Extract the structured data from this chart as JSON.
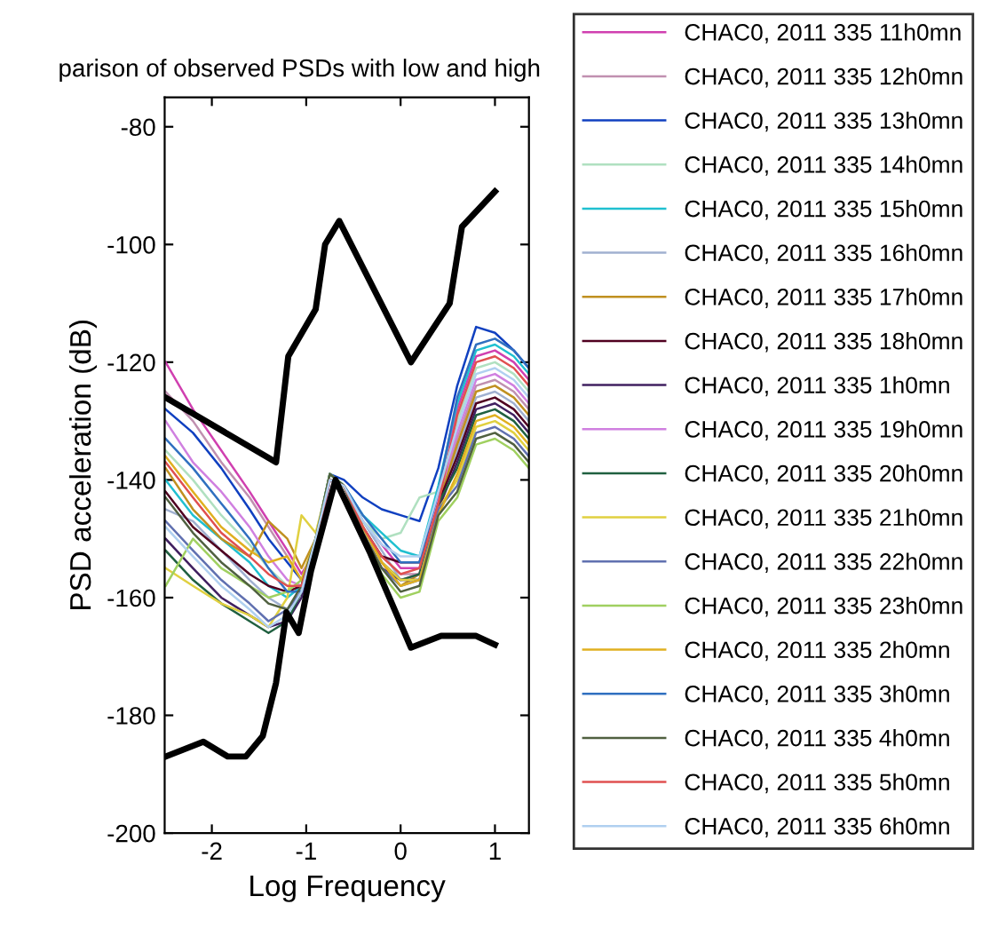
{
  "chart_data": {
    "type": "line",
    "title": "parison of observed PSDs with low and high",
    "xlabel": "Log Frequency",
    "ylabel": "PSD acceleration (dB)",
    "xlim": [
      -2.5,
      1.36
    ],
    "ylim": [
      -200,
      -75
    ],
    "xticks": [
      -2,
      -1,
      0,
      1
    ],
    "yticks": [
      -200,
      -180,
      -160,
      -140,
      -120,
      -100,
      -80
    ],
    "grid": false,
    "legend": "right",
    "marker": "none",
    "line_style": "solid",
    "x": [
      -2.49,
      -2.2,
      -1.9,
      -1.6,
      -1.4,
      -1.2,
      -1.05,
      -0.9,
      -0.75,
      -0.6,
      -0.4,
      -0.2,
      0,
      0.2,
      0.4,
      0.6,
      0.8,
      1.0,
      1.2,
      1.36
    ],
    "series": [
      {
        "name": "CHAC0, 2011 335 11h0mn",
        "color": "#d040b0",
        "values": [
          -120,
          -128,
          -135,
          -142,
          -147,
          -152,
          -156,
          -152,
          -140,
          -141,
          -147,
          -151,
          -155,
          -155,
          -143,
          -128,
          -119,
          -118,
          -120,
          -123
        ]
      },
      {
        "name": "CHAC0, 2011 335 12h0mn",
        "color": "#c090b0",
        "values": [
          -125,
          -130,
          -137,
          -143,
          -148,
          -153,
          -157,
          -153,
          -140,
          -141,
          -148,
          -153,
          -156,
          -156,
          -144,
          -133,
          -124,
          -123,
          -125,
          -128
        ]
      },
      {
        "name": "CHAC0, 2011 335 13h0mn",
        "color": "#1040c0",
        "values": [
          -128,
          -132,
          -138,
          -145,
          -150,
          -154,
          -157,
          -152,
          -139,
          -140,
          -143,
          -145,
          -146,
          -147,
          -138,
          -124,
          -114,
          -115,
          -118,
          -121
        ]
      },
      {
        "name": "CHAC0, 2011 335 14h0mn",
        "color": "#b0e0c0",
        "values": [
          -135,
          -140,
          -146,
          -151,
          -155,
          -158,
          -159,
          -151,
          -140,
          -141,
          -147,
          -150,
          -149,
          -143,
          -142,
          -130,
          -121,
          -120,
          -122,
          -125
        ]
      },
      {
        "name": "CHAC0, 2011 335 15h0mn",
        "color": "#20c0d0",
        "values": [
          -140,
          -146,
          -150,
          -154,
          -158,
          -160,
          -158,
          -150,
          -139,
          -141,
          -146,
          -149,
          -152,
          -153,
          -141,
          -127,
          -118,
          -117,
          -119,
          -122
        ]
      },
      {
        "name": "CHAC0, 2011 335 16h0mn",
        "color": "#a0b0d0",
        "values": [
          -145,
          -147,
          -152,
          -157,
          -160,
          -162,
          -159,
          -150,
          -140,
          -141,
          -147,
          -152,
          -157,
          -157,
          -145,
          -135,
          -126,
          -125,
          -127,
          -130
        ]
      },
      {
        "name": "CHAC0, 2011 335 17h0mn",
        "color": "#c09020",
        "values": [
          -138,
          -145,
          -150,
          -153,
          -147,
          -150,
          -155,
          -150,
          -140,
          -141,
          -148,
          -154,
          -158,
          -156,
          -144,
          -134,
          -125,
          -124,
          -126,
          -129
        ]
      },
      {
        "name": "CHAC0, 2011 335 18h0mn",
        "color": "#500020",
        "values": [
          -142,
          -148,
          -152,
          -156,
          -158,
          -159,
          -158,
          -151,
          -140,
          -141,
          -148,
          -153,
          -154,
          -154,
          -144,
          -136,
          -127,
          -126,
          -128,
          -131
        ]
      },
      {
        "name": "CHAC0, 2011 335 1h0mn",
        "color": "#402060",
        "values": [
          -150,
          -155,
          -160,
          -163,
          -165,
          -164,
          -160,
          -151,
          -140,
          -141,
          -149,
          -155,
          -157,
          -157,
          -145,
          -137,
          -128,
          -127,
          -129,
          -132
        ]
      },
      {
        "name": "CHAC0, 2011 335 19h0mn",
        "color": "#d080e0",
        "values": [
          -130,
          -137,
          -142,
          -148,
          -153,
          -157,
          -158,
          -152,
          -140,
          -141,
          -148,
          -154,
          -157,
          -156,
          -143,
          -132,
          -123,
          -122,
          -124,
          -127
        ]
      },
      {
        "name": "CHAC0, 2011 335 20h0mn",
        "color": "#206040",
        "values": [
          -152,
          -157,
          -161,
          -164,
          -166,
          -164,
          -159,
          -150,
          -139,
          -141,
          -148,
          -154,
          -157,
          -156,
          -144,
          -138,
          -129,
          -128,
          -130,
          -133
        ]
      },
      {
        "name": "CHAC0, 2011 335 21h0mn",
        "color": "#e0d040",
        "values": [
          -155,
          -158,
          -161,
          -163,
          -165,
          -160,
          -146,
          -149,
          -140,
          -141,
          -148,
          -154,
          -157,
          -157,
          -145,
          -140,
          -131,
          -130,
          -132,
          -135
        ]
      },
      {
        "name": "CHAC0, 2011 335 22h0mn",
        "color": "#6070b0",
        "values": [
          -147,
          -152,
          -157,
          -161,
          -164,
          -162,
          -159,
          -150,
          -140,
          -141,
          -149,
          -155,
          -158,
          -157,
          -145,
          -141,
          -132,
          -131,
          -133,
          -136
        ]
      },
      {
        "name": "CHAC0, 2011 335 23h0mn",
        "color": "#a0d060",
        "values": [
          -158,
          -150,
          -155,
          -158,
          -160,
          -159,
          -157,
          -150,
          -139,
          -141,
          -149,
          -156,
          -160,
          -159,
          -147,
          -143,
          -134,
          -133,
          -135,
          -138
        ]
      },
      {
        "name": "CHAC0, 2011 335 2h0mn",
        "color": "#e0b020",
        "values": [
          -136,
          -142,
          -148,
          -152,
          -154,
          -153,
          -157,
          -150,
          -140,
          -141,
          -148,
          -154,
          -158,
          -157,
          -146,
          -139,
          -130,
          -129,
          -131,
          -134
        ]
      },
      {
        "name": "CHAC0, 2011 335 3h0mn",
        "color": "#3070c0",
        "values": [
          -133,
          -138,
          -144,
          -150,
          -155,
          -159,
          -159,
          -151,
          -140,
          -141,
          -146,
          -150,
          -154,
          -154,
          -142,
          -126,
          -117,
          -116,
          -118,
          -121
        ]
      },
      {
        "name": "CHAC0, 2011 335 4h0mn",
        "color": "#506040",
        "values": [
          -143,
          -149,
          -154,
          -158,
          -161,
          -162,
          -158,
          -150,
          -139,
          -141,
          -149,
          -155,
          -159,
          -158,
          -146,
          -142,
          -133,
          -132,
          -134,
          -137
        ]
      },
      {
        "name": "CHAC0, 2011 335 5h0mn",
        "color": "#e05050",
        "values": [
          -137,
          -143,
          -149,
          -153,
          -156,
          -158,
          -158,
          -151,
          -140,
          -141,
          -148,
          -153,
          -156,
          -155,
          -144,
          -129,
          -120,
          -119,
          -121,
          -124
        ]
      },
      {
        "name": "CHAC0, 2011 335 6h0mn",
        "color": "#b0d0f0",
        "values": [
          -148,
          -153,
          -158,
          -162,
          -165,
          -163,
          -159,
          -150,
          -140,
          -141,
          -147,
          -151,
          -153,
          -153,
          -142,
          -131,
          -122,
          -121,
          -123,
          -126
        ]
      },
      {
        "color": "#000000",
        "x": [
          -2.49,
          -1.32,
          -1.19,
          -0.9,
          -0.8,
          -0.65,
          0.11,
          0.52,
          0.65,
          1.0
        ],
        "values": [
          -126,
          -137,
          -119,
          -111,
          -100,
          -96,
          -120,
          -110,
          -97,
          -91
        ]
      },
      {
        "color": "#000000",
        "x": [
          -2.49,
          -2.09,
          -1.83,
          -1.64,
          -1.46,
          -1.32,
          -1.21,
          -1.08,
          -0.95,
          -0.69,
          -0.32,
          0.11,
          0.43,
          0.8,
          1.0
        ],
        "values": [
          -187,
          -184.5,
          -187,
          -187,
          -183.5,
          -174.5,
          -162.5,
          -166,
          -155.5,
          -140,
          -152.5,
          -168.5,
          -166.5,
          -166.5,
          -168
        ]
      }
    ]
  }
}
